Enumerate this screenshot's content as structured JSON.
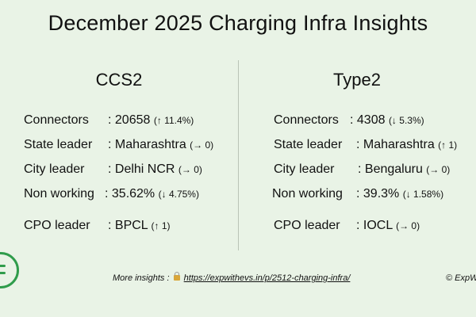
{
  "title": "December 2025 Charging Infra Insights",
  "columns": [
    {
      "heading": "CCS2",
      "rows": [
        {
          "label": "Connectors",
          "value": ": 20658",
          "change": "(↑ 11.4%)"
        },
        {
          "label": "State leader",
          "value": ": Maharashtra",
          "change": "(→ 0)"
        },
        {
          "label": "City leader",
          "value": ": Delhi NCR",
          "change": "(→ 0)"
        },
        {
          "label": "Non working",
          "value": ": 35.62%",
          "change": "(↓ 4.75%)"
        },
        {
          "label": "CPO leader",
          "value": ": BPCL",
          "change": "(↑ 1)"
        }
      ]
    },
    {
      "heading": "Type2",
      "rows": [
        {
          "label": "Connectors",
          "value": ": 4308",
          "change": "(↓ 5.3%)"
        },
        {
          "label": "State leader",
          "value": ": Maharashtra",
          "change": "(↑ 1)"
        },
        {
          "label": "City leader",
          "value": ": Bengaluru",
          "change": "(→ 0)"
        },
        {
          "label": "Non working",
          "value": ": 39.3%",
          "change": "(↓ 1.58%)"
        },
        {
          "label": "CPO leader",
          "value": ": IOCL",
          "change": "(→ 0)"
        }
      ]
    }
  ],
  "footer": {
    "prefix": "More insights :",
    "link": "https://expwithevs.in/p/2512-charging-infra/",
    "copyright": "© ExpW"
  },
  "icons": {
    "lock": "lock-icon",
    "logo": "brand-logo-icon"
  },
  "colors": {
    "background": "#e9f3e6",
    "brand": "#2f9c4b"
  }
}
